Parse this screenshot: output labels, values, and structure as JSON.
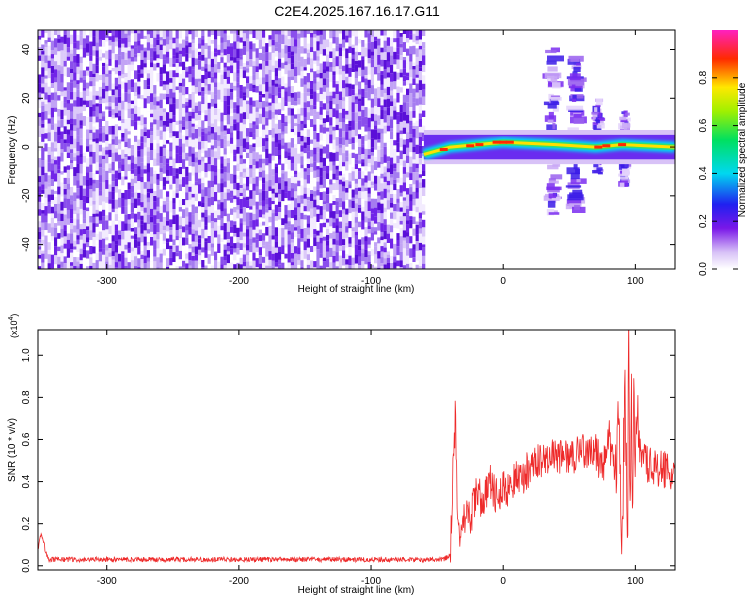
{
  "title": "C2E4.2025.167.16.17.G11",
  "colors": {
    "spectrogram_noise": "#7a2cf0",
    "snr_line": "#ee2a2a",
    "axis": "#000000"
  },
  "chart_data": [
    {
      "type": "heatmap",
      "title": "C2E4.2025.167.16.17.G11",
      "xlabel": "Height of straight line (km)",
      "ylabel": "Frequency (Hz)",
      "xlim": [
        -352,
        130
      ],
      "ylim": [
        -50,
        48
      ],
      "xticks": [
        -300,
        -200,
        -100,
        0,
        100
      ],
      "xtick_labels": [
        "-300",
        "-200",
        "-100",
        "0",
        "100"
      ],
      "yticks": [
        -40,
        -20,
        0,
        20,
        40
      ],
      "ytick_labels": [
        "-40",
        "-20",
        "0",
        "20",
        "40"
      ],
      "colorbar": {
        "label": "Normalized spectral amplitude",
        "range": [
          0,
          1
        ],
        "ticks": [
          0.0,
          0.2,
          0.4,
          0.6,
          0.8
        ],
        "tick_labels": [
          "0.0",
          "0.2",
          "0.4",
          "0.6",
          "0.8"
        ],
        "colormap": "rainbow (white-violet-blue-cyan-green-yellow-red-magenta)"
      },
      "features": {
        "noise_region_x": [
          -352,
          -60
        ],
        "signal_band_x": [
          -60,
          130
        ],
        "signal_band_freq_hz": [
          -5,
          5
        ],
        "signal_trace_freq_hz": [
          [
            -60,
            -3
          ],
          [
            -40,
            0
          ],
          [
            -20,
            1
          ],
          [
            0,
            2
          ],
          [
            40,
            1
          ],
          [
            70,
            0
          ],
          [
            90,
            1
          ],
          [
            130,
            0
          ]
        ],
        "vertical_disturbances_x": [
          38,
          55,
          72,
          92
        ],
        "disturbance_freq_range_hz": [
          [
            -30,
            42
          ],
          [
            -25,
            38
          ],
          [
            -10,
            20
          ],
          [
            -15,
            15
          ]
        ]
      }
    },
    {
      "type": "line",
      "xlabel": "Height of straight line (km)",
      "ylabel": "SNR (10 * v/v)",
      "y_scale_label": "(x10",
      "y_scale_exp": "4",
      "y_scale_close": ")",
      "xlim": [
        -352,
        130
      ],
      "ylim": [
        -0.02,
        1.12
      ],
      "xticks": [
        -300,
        -200,
        -100,
        0,
        100
      ],
      "xtick_labels": [
        "-300",
        "-200",
        "-100",
        "0",
        "100"
      ],
      "yticks": [
        0.0,
        0.2,
        0.4,
        0.6,
        0.8,
        1.0
      ],
      "ytick_labels": [
        "0.0",
        "0.2",
        "0.4",
        "0.6",
        "0.8",
        "1.0"
      ],
      "series": [
        {
          "x": [
            -352,
            -350,
            -348,
            -346,
            -344,
            -340,
            -300,
            -250,
            -200,
            -150,
            -100,
            -60,
            -45,
            -40,
            -38,
            -36,
            -35,
            -33,
            -30,
            -25,
            -20,
            -15,
            -10,
            -5,
            0,
            5,
            10,
            15,
            20,
            30,
            40,
            50,
            60,
            70,
            75,
            80,
            85,
            88,
            90,
            92,
            94,
            95,
            96,
            97,
            98,
            99,
            100,
            102,
            105,
            110,
            115,
            120,
            125,
            130
          ],
          "y": [
            0.08,
            0.15,
            0.12,
            0.06,
            0.03,
            0.03,
            0.03,
            0.03,
            0.03,
            0.03,
            0.03,
            0.03,
            0.03,
            0.05,
            0.45,
            0.74,
            0.35,
            0.08,
            0.25,
            0.22,
            0.35,
            0.3,
            0.4,
            0.33,
            0.38,
            0.36,
            0.45,
            0.42,
            0.47,
            0.5,
            0.52,
            0.52,
            0.54,
            0.55,
            0.45,
            0.62,
            0.4,
            0.7,
            0.1,
            0.85,
            0.05,
            1.12,
            0.3,
            0.95,
            0.02,
            0.9,
            0.45,
            0.6,
            0.5,
            0.48,
            0.47,
            0.46,
            0.45,
            0.46
          ]
        }
      ]
    }
  ]
}
